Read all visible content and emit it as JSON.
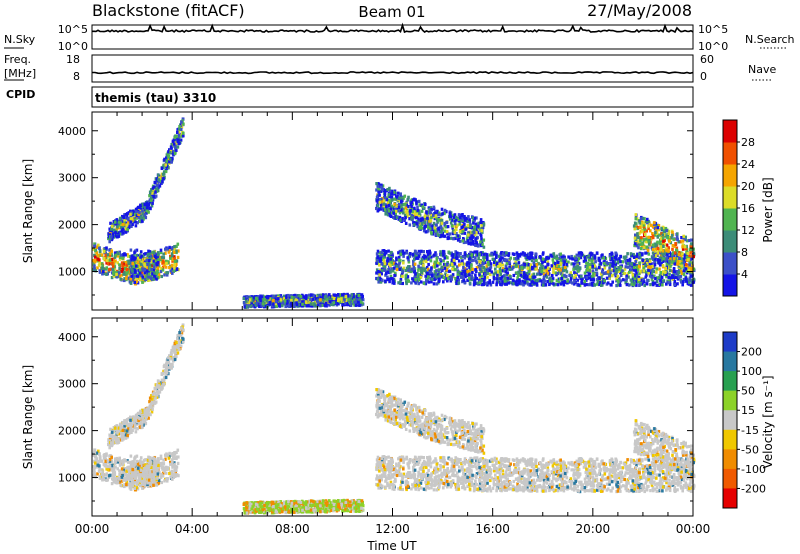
{
  "header": {
    "station_label": "Blackstone (fitACF)",
    "beam_label": "Beam 01",
    "date_label": "27/May/2008"
  },
  "side_labels": {
    "nsky": "N.Sky",
    "nsearch": "N.Search",
    "freq_line1": "Freq.",
    "freq_line2": "[MHz]",
    "nave": "Nave",
    "cpid": "CPID"
  },
  "cpid_value": "themis (tau) 3310",
  "colors": {
    "frame": "#000000",
    "velocity_ground_scatter": "#c8c8c8"
  },
  "chart_data": [
    {
      "type": "line",
      "name": "noise-panel",
      "left_axis": {
        "label": "N.Sky",
        "tick_labels": [
          "10^5",
          "10^0"
        ]
      },
      "right_axis": {
        "label": "N.Search",
        "tick_labels": [
          "10^5",
          "10^0"
        ]
      },
      "x_range_hours": [
        0,
        24
      ]
    },
    {
      "type": "line",
      "name": "frequency-panel",
      "left_axis": {
        "label": "Freq. [MHz]",
        "ticks": [
          8,
          18
        ],
        "ylim": [
          5,
          18
        ]
      },
      "right_axis": {
        "label": "Nave",
        "ticks": [
          0,
          60
        ],
        "ylim": [
          0,
          60
        ]
      },
      "x_range_hours": [
        0,
        24
      ],
      "value_mhz": 9.5
    },
    {
      "type": "heatmap",
      "name": "power-panel",
      "ylabel": "Slant Range [km]",
      "ylim": [
        180,
        4400
      ],
      "yticks": [
        1000,
        2000,
        3000,
        4000
      ],
      "xlim": [
        0,
        24
      ],
      "colorbar": {
        "label": "Power [dB]",
        "ticks": [
          4,
          8,
          12,
          16,
          20,
          24,
          28
        ],
        "range": [
          0,
          32
        ],
        "colors": [
          "#1414e6",
          "#3c50c8",
          "#3c8c78",
          "#50b450",
          "#dcdc28",
          "#f5a500",
          "#f05000",
          "#dc0000"
        ]
      },
      "scatter_regions": [
        {
          "t": [
            0.0,
            3.4
          ],
          "range_center": [
            1300,
            1000,
            1300
          ],
          "width": 300,
          "level": "high"
        },
        {
          "t": [
            0.6,
            3.6
          ],
          "range_center": [
            1800,
            2300,
            4100
          ],
          "width": 200,
          "level": "mid"
        },
        {
          "t": [
            1.5,
            2.6
          ],
          "range_center": [
            1200,
            1150,
            1100
          ],
          "width": 300,
          "level": "mid"
        },
        {
          "t": [
            6.0,
            10.8
          ],
          "range_center": [
            350,
            380,
            400
          ],
          "width": 120,
          "level": "mid"
        },
        {
          "t": [
            11.3,
            15.6
          ],
          "range_center": [
            2600,
            2100,
            1800
          ],
          "width": 300,
          "level": "mid"
        },
        {
          "t": [
            11.3,
            24.0
          ],
          "range_center": [
            1100,
            1050,
            1050
          ],
          "width": 350,
          "level": "mid"
        },
        {
          "t": [
            21.6,
            24.0
          ],
          "range_center": [
            1900,
            1600,
            1300
          ],
          "width": 350,
          "level": "high"
        }
      ]
    },
    {
      "type": "heatmap",
      "name": "velocity-panel",
      "ylabel": "Slant Range [km]",
      "ylim": [
        180,
        4400
      ],
      "yticks": [
        1000,
        2000,
        3000,
        4000
      ],
      "xlim": [
        0,
        24
      ],
      "xticks": [
        "00:00",
        "04:00",
        "08:00",
        "12:00",
        "16:00",
        "20:00",
        "00:00"
      ],
      "xlabel": "Time UT",
      "colorbar": {
        "label": "Velocity [m s⁻¹]",
        "ticks": [
          "200",
          "100",
          "50",
          "15",
          "-15",
          "-50",
          "-100",
          "-200"
        ],
        "colors": [
          "#1e3cc8",
          "#2878a0",
          "#28a050",
          "#8cd228",
          "#c8c8c8",
          "#f0c800",
          "#f08c00",
          "#f05a00",
          "#e60000"
        ]
      }
    }
  ]
}
